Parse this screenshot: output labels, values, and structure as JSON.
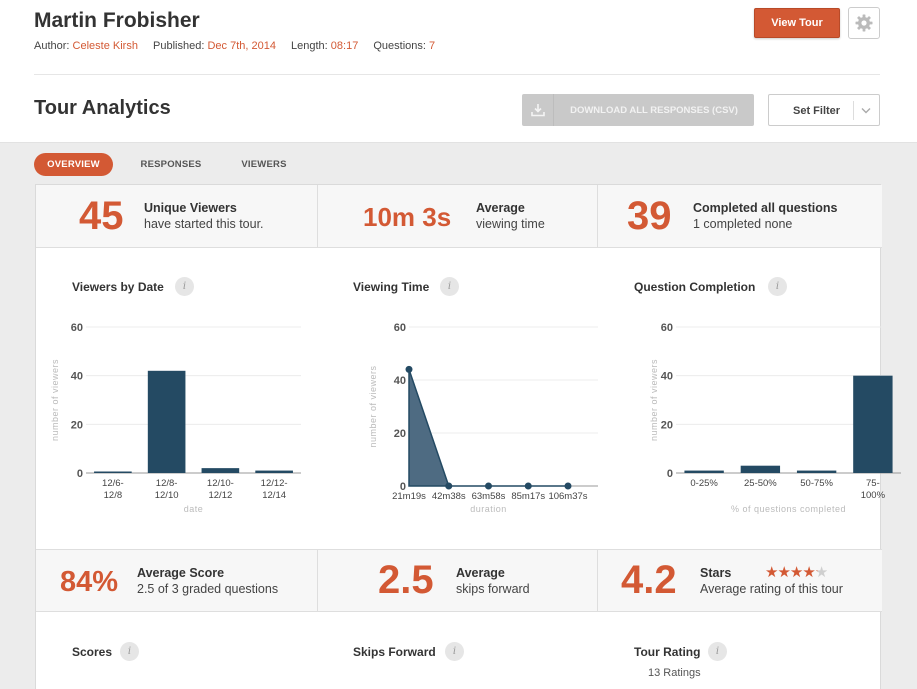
{
  "header": {
    "title": "Martin Frobisher",
    "author_label": "Author:",
    "author": "Celeste Kirsh",
    "published_label": "Published:",
    "published": "Dec 7th, 2014",
    "length_label": "Length:",
    "length": "08:17",
    "questions_label": "Questions:",
    "questions": "7",
    "view_tour_label": "View Tour",
    "settings_icon": "gear-icon"
  },
  "analytics": {
    "title": "Tour Analytics",
    "download_label": "DOWNLOAD ALL RESPONSES (CSV)",
    "download_icon": "download-icon",
    "filter_label": "Set Filter"
  },
  "tabs": [
    {
      "label": "OVERVIEW",
      "active": true
    },
    {
      "label": "RESPONSES",
      "active": false
    },
    {
      "label": "VIEWERS",
      "active": false
    }
  ],
  "stats_top": [
    {
      "value": "45",
      "label": "Unique Viewers",
      "sub": "have started this tour."
    },
    {
      "value": "10m 3s",
      "label": "Average",
      "sub": "viewing time"
    },
    {
      "value": "39",
      "label": "Completed all questions",
      "sub": "1 completed none"
    }
  ],
  "stats_bottom": [
    {
      "value": "84%",
      "label": "Average Score",
      "sub": "2.5 of 3 graded questions"
    },
    {
      "value": "2.5",
      "label": "Average",
      "sub": "skips forward"
    },
    {
      "value": "4.2",
      "label": "Stars",
      "sub": "Average rating of this tour",
      "rating": 4.2,
      "max_stars": 5
    }
  ],
  "chart_titles": {
    "viewers_by_date": "Viewers by Date",
    "viewing_time": "Viewing Time",
    "question_completion": "Question Completion",
    "scores": "Scores",
    "skips_forward": "Skips Forward",
    "tour_rating": "Tour Rating"
  },
  "tour_rating_count": "13 Ratings",
  "colors": {
    "accent": "#d35934",
    "bar": "#244a63",
    "area": "#4e6b82"
  },
  "chart_data": [
    {
      "type": "bar",
      "title": "Viewers by Date",
      "categories": [
        [
          "12/6-",
          "12/8"
        ],
        [
          "12/8-",
          "12/10"
        ],
        [
          "12/10-",
          "12/12"
        ],
        [
          "12/12-",
          "12/14"
        ]
      ],
      "values": [
        0,
        42,
        2,
        1
      ],
      "xlabel": "date",
      "ylabel": "number of viewers",
      "ylim": [
        0,
        60
      ],
      "yticks": [
        0,
        20,
        40,
        60
      ]
    },
    {
      "type": "area",
      "title": "Viewing Time",
      "categories": [
        "21m19s",
        "42m38s",
        "63m58s",
        "85m17s",
        "106m37s"
      ],
      "values": [
        44,
        0,
        0,
        0,
        0
      ],
      "xlabel": "duration",
      "ylabel": "number of viewers",
      "ylim": [
        0,
        60
      ],
      "yticks": [
        0,
        20,
        40,
        60
      ]
    },
    {
      "type": "bar",
      "title": "Question Completion",
      "categories": [
        [
          "0-25%"
        ],
        [
          "25-50%"
        ],
        [
          "50-75%"
        ],
        [
          "75-",
          "100%"
        ]
      ],
      "values": [
        1,
        3,
        1,
        40
      ],
      "xlabel": "% of questions completed",
      "ylabel": "number of viewers",
      "ylim": [
        0,
        60
      ],
      "yticks": [
        0,
        20,
        40,
        60
      ]
    }
  ]
}
